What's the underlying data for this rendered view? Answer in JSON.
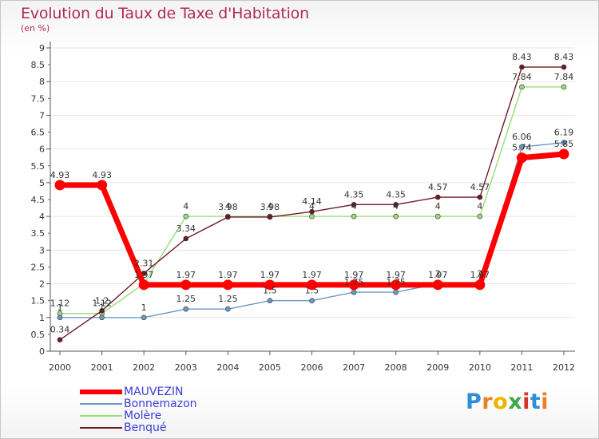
{
  "title": "Evolution du Taux de Taxe d'Habitation",
  "subtitle": "(en %)",
  "logo_text": "Proxiti",
  "chart_data": {
    "type": "line",
    "title": "Evolution du Taux de Taxe d'Habitation",
    "ylabel": "(en %)",
    "x": [
      2000,
      2001,
      2002,
      2003,
      2004,
      2005,
      2006,
      2007,
      2008,
      2009,
      2010,
      2011,
      2012
    ],
    "ylim": [
      0,
      9
    ],
    "yticks": [
      0,
      0.5,
      1,
      1.5,
      2,
      2.5,
      3,
      3.5,
      4,
      4.5,
      5,
      5.5,
      6,
      6.5,
      7,
      7.5,
      8,
      8.5,
      9
    ],
    "legend_position": "bottom-left",
    "series": [
      {
        "name": "MAUVEZIN",
        "color": "#ff0000",
        "values": [
          4.93,
          4.93,
          1.97,
          1.97,
          1.97,
          1.97,
          1.97,
          1.97,
          1.97,
          1.97,
          1.97,
          5.74,
          5.85
        ],
        "labels": [
          "4.93",
          "4.93",
          "1.97",
          "1.97",
          "1.97",
          "1.97",
          "1.97",
          "1.97",
          "1.97",
          "1.97",
          "1.97",
          "5.74",
          "5.85"
        ]
      },
      {
        "name": "Bonnemazon",
        "color": "#6b9ac4",
        "values": [
          1,
          1,
          1,
          1.25,
          1.25,
          1.5,
          1.5,
          1.75,
          1.75,
          2,
          2,
          6.06,
          6.19
        ],
        "labels": [
          "1",
          "1",
          "1",
          "1.25",
          "1.25",
          "1.5",
          "1.5",
          "1.75",
          "1.75",
          "2",
          "2",
          "6.06",
          "6.19"
        ]
      },
      {
        "name": "Molère",
        "color": "#99dd77",
        "values": [
          1.12,
          1.12,
          2,
          4,
          4,
          4,
          4,
          4,
          4,
          4,
          4,
          7.84,
          7.84
        ],
        "labels": [
          "1.12",
          "1.12",
          "",
          "4",
          "4",
          "4",
          "4",
          "4",
          "4",
          "4",
          "4",
          "7.84",
          "7.84"
        ]
      },
      {
        "name": "Benqué",
        "color": "#6e1a24",
        "values": [
          0.34,
          1.2,
          2.31,
          3.34,
          3.98,
          3.98,
          4.14,
          4.35,
          4.35,
          4.57,
          4.57,
          8.43,
          8.43
        ],
        "labels": [
          "0.34",
          "1.2",
          "2.31",
          "3.34",
          "3.98",
          "3.98",
          "4.14",
          "4.35",
          "4.35",
          "4.57",
          "4.57",
          "8.43",
          "8.43"
        ]
      }
    ]
  }
}
